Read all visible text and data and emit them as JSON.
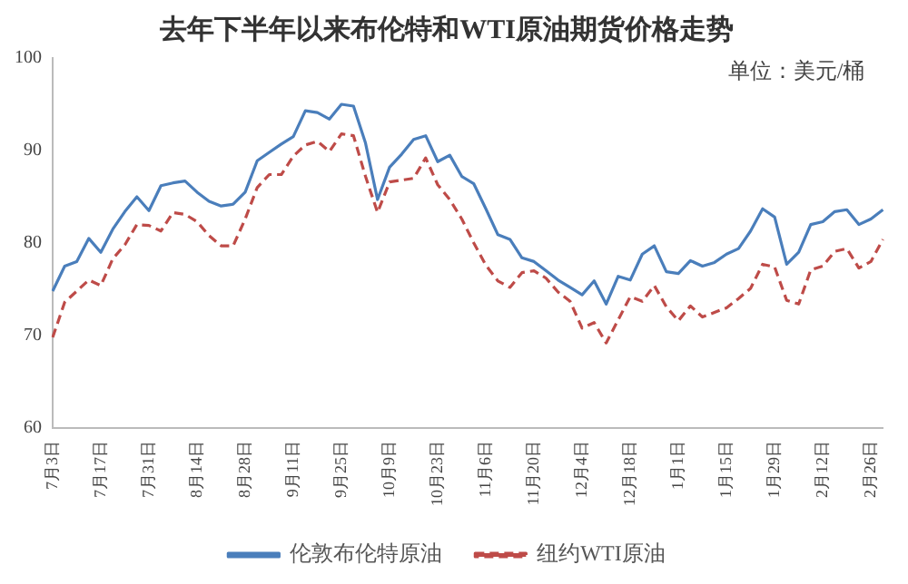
{
  "chart_data": {
    "type": "line",
    "title": "去年下半年以来布伦特和WTI原油期货价格走势",
    "annotations": [
      "单位：美元/桶"
    ],
    "categories": [
      "7月3日",
      null,
      null,
      null,
      "7月17日",
      null,
      null,
      null,
      "7月31日",
      null,
      null,
      null,
      "8月14日",
      null,
      null,
      null,
      "8月28日",
      null,
      null,
      null,
      "9月11日",
      null,
      null,
      null,
      "9月25日",
      null,
      null,
      null,
      "10月9日",
      null,
      null,
      null,
      "10月23日",
      null,
      null,
      null,
      "11月6日",
      null,
      null,
      null,
      "11月20日",
      null,
      null,
      null,
      "12月4日",
      null,
      null,
      null,
      "12月18日",
      null,
      null,
      null,
      "1月1日",
      null,
      null,
      null,
      "1月15日",
      null,
      null,
      null,
      "1月29日",
      null,
      null,
      null,
      "2月12日",
      null,
      null,
      null,
      "2月26日",
      null
    ],
    "ylim": [
      60,
      100
    ],
    "yticks": [
      60,
      70,
      80,
      90,
      100
    ],
    "grid": false,
    "legend": "bottom",
    "marker": "none",
    "series": [
      {
        "name": "伦敦布伦特原油",
        "color": "#4a7ebb",
        "line_style": "solid",
        "values": [
          74.8,
          77.5,
          78,
          80.5,
          79,
          81.5,
          83.4,
          85,
          83.5,
          86.2,
          86.5,
          86.7,
          85.5,
          84.5,
          84,
          84.2,
          85.5,
          88.9,
          89.8,
          90.7,
          91.5,
          94.3,
          94.1,
          93.4,
          95,
          94.8,
          90.8,
          84.7,
          88.2,
          89.6,
          91.2,
          91.6,
          88.8,
          89.5,
          87.2,
          86.4,
          83.7,
          80.9,
          80.4,
          78.4,
          78,
          77,
          76,
          75.2,
          74.4,
          75.9,
          73.4,
          76.4,
          76,
          78.8,
          79.7,
          76.9,
          76.7,
          78.1,
          77.5,
          77.9,
          78.8,
          79.4,
          81.3,
          83.7,
          82.8,
          77.7,
          79,
          82,
          82.3,
          83.4,
          83.6,
          82,
          82.6,
          83.6
        ]
      },
      {
        "name": "纽约WTI原油",
        "color": "#be4b48",
        "line_style": "dashed",
        "values": [
          69.8,
          73.6,
          74.8,
          76,
          75.4,
          78.3,
          79.8,
          82,
          81.9,
          81.3,
          83.3,
          83.1,
          82.3,
          80.8,
          79.7,
          79.7,
          82.6,
          86,
          87.4,
          87.4,
          89.4,
          90.6,
          91,
          89.9,
          91.8,
          91.6,
          87.2,
          83.3,
          86.6,
          86.8,
          87,
          89.2,
          86.3,
          84.7,
          82.6,
          80,
          77.6,
          75.9,
          75.2,
          76.8,
          77,
          76.2,
          74.7,
          73.7,
          70.8,
          71.4,
          69.2,
          71.7,
          74.2,
          73.7,
          75.4,
          73.1,
          71.6,
          73.2,
          72,
          72.5,
          73,
          74,
          75.1,
          77.7,
          77.4,
          73.8,
          73.4,
          77.1,
          77.5,
          79.1,
          79.4,
          77.3,
          78,
          80.4
        ]
      }
    ]
  }
}
